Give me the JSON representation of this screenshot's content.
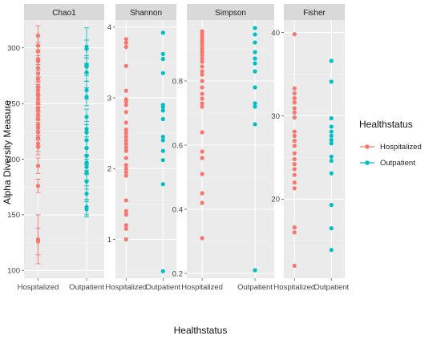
{
  "chart_data": {
    "type": "scatter",
    "xlabel": "Healthstatus",
    "ylabel": "Alpha Diversity Measure",
    "categories": [
      "Hospitalized",
      "Outpatient"
    ],
    "legend": {
      "title": "Healthstatus",
      "placement": "right",
      "entries": [
        {
          "name": "Hospitalized",
          "color": "#f8766d"
        },
        {
          "name": "Outpatient",
          "color": "#00bfc4"
        }
      ]
    },
    "grid": true,
    "panels": [
      {
        "title": "Chao1",
        "ylim": [
          93,
          325
        ],
        "yticks": [
          100,
          150,
          200,
          250,
          300
        ],
        "error_bars": true,
        "series": [
          {
            "name": "Hospitalized",
            "values": [
              311,
              302,
              297,
              290,
              288,
              282,
              277,
              272,
              265,
              262,
              259,
              257,
              254,
              250,
              246,
              244,
              240,
              236,
              231,
              228,
              224,
              219,
              214,
              211,
              194,
              176,
              128,
              126
            ],
            "errors": [
              9,
              9,
              8,
              8,
              8,
              8,
              8,
              8,
              8,
              8,
              8,
              8,
              8,
              8,
              8,
              8,
              7,
              7,
              7,
              7,
              7,
              7,
              7,
              7,
              7,
              6,
              22,
              12
            ]
          },
          {
            "name": "Outpatient",
            "values": [
              301,
              299,
              285,
              283,
              278,
              262,
              256,
              238,
              227,
              224,
              217,
              210,
              203,
              197,
              193,
              188,
              180,
              169,
              157,
              155
            ],
            "errors": [
              17,
              8,
              8,
              8,
              8,
              8,
              8,
              7,
              7,
              7,
              7,
              7,
              7,
              7,
              7,
              7,
              7,
              7,
              7,
              7
            ]
          }
        ]
      },
      {
        "title": "Shannon",
        "ylim": [
          0.45,
          4.1
        ],
        "yticks": [
          1,
          2,
          3,
          4
        ],
        "series": [
          {
            "name": "Hospitalized",
            "values": [
              3.83,
              3.78,
              3.72,
              3.45,
              3.1,
              2.98,
              2.95,
              2.9,
              2.8,
              2.65,
              2.55,
              2.5,
              2.45,
              2.4,
              2.35,
              2.3,
              2.25,
              2.15,
              2.05,
              2.0,
              1.95,
              1.9,
              1.55,
              1.4,
              1.35,
              1.2,
              1.15,
              1.0
            ]
          },
          {
            "name": "Outpatient",
            "values": [
              3.92,
              3.62,
              3.55,
              3.35,
              2.9,
              2.87,
              2.82,
              2.7,
              2.45,
              2.4,
              2.25,
              2.12,
              1.78,
              0.55
            ]
          }
        ]
      },
      {
        "title": "Simpson",
        "ylim": [
          0.185,
          0.99
        ],
        "yticks": [
          0.2,
          0.4,
          0.6,
          0.8
        ],
        "series": [
          {
            "name": "Hospitalized",
            "values": [
              0.955,
              0.948,
              0.94,
              0.932,
              0.925,
              0.918,
              0.91,
              0.9,
              0.89,
              0.88,
              0.87,
              0.86,
              0.845,
              0.83,
              0.82,
              0.8,
              0.78,
              0.76,
              0.745,
              0.73,
              0.72,
              0.64,
              0.58,
              0.56,
              0.51,
              0.45,
              0.42,
              0.31
            ]
          },
          {
            "name": "Outpatient",
            "values": [
              0.965,
              0.945,
              0.92,
              0.89,
              0.87,
              0.855,
              0.83,
              0.78,
              0.73,
              0.72,
              0.665,
              0.21
            ]
          }
        ]
      },
      {
        "title": "Fisher",
        "ylim": [
          10.5,
          41.5
        ],
        "yticks": [
          20,
          30,
          40
        ],
        "series": [
          {
            "name": "Hospitalized",
            "values": [
              39.8,
              33.3,
              32.7,
              32.1,
              31.6,
              30.9,
              30.4,
              29.8,
              28.1,
              27.6,
              27.0,
              26.4,
              25.5,
              24.8,
              24.2,
              23.6,
              22.9,
              22.0,
              21.3,
              16.6,
              16.0,
              12.0
            ]
          },
          {
            "name": "Outpatient",
            "values": [
              36.6,
              34.1,
              29.7,
              28.7,
              28.1,
              27.6,
              27.1,
              26.7,
              25.1,
              24.6,
              23.1,
              19.3,
              16.5,
              13.9
            ]
          }
        ]
      }
    ]
  }
}
